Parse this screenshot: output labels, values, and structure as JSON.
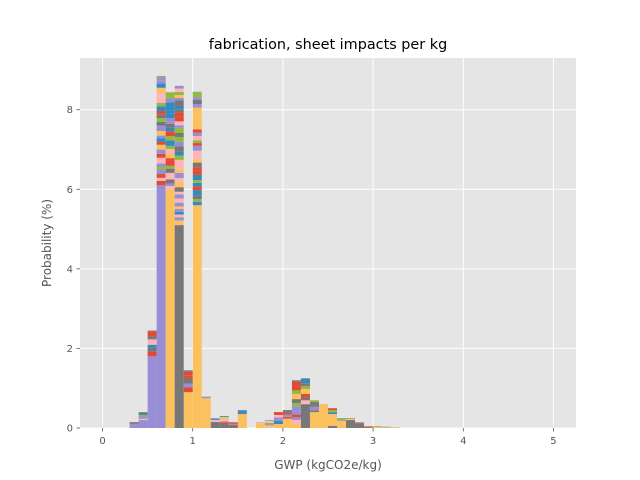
{
  "chart_data": {
    "type": "bar",
    "title": "fabrication, sheet impacts per kg",
    "xlabel": "GWP (kgCO2e/kg)",
    "ylabel": "Probability (%)",
    "xlim": [
      -0.25,
      5.25
    ],
    "ylim": [
      0,
      9.3
    ],
    "xticks": [
      "0",
      "1",
      "2",
      "3",
      "4",
      "5"
    ],
    "yticks": [
      "0",
      "2",
      "4",
      "6",
      "8"
    ],
    "grid": true,
    "bin_width": 0.1,
    "stack_palette": [
      "#348ABD",
      "#E24A33",
      "#988ED5",
      "#777777",
      "#FBC15E",
      "#8EBA42",
      "#FFB5B8"
    ],
    "base_series": [
      {
        "name": "",
        "color": "#988ED5",
        "bins": [
          [
            0.3,
            0.1
          ],
          [
            0.4,
            0.2
          ],
          [
            0.5,
            1.8
          ],
          [
            0.6,
            6.1
          ]
        ]
      },
      {
        "name": "",
        "color": "#FBC15E",
        "bins": [
          [
            0.7,
            6.0
          ],
          [
            0.8,
            0.6
          ],
          [
            0.9,
            0.9
          ],
          [
            1.0,
            5.6
          ],
          [
            1.1,
            0.75
          ],
          [
            1.5,
            0.35
          ],
          [
            1.7,
            0.1
          ],
          [
            1.9,
            0.1
          ],
          [
            2.0,
            0.15
          ],
          [
            2.1,
            0.1
          ],
          [
            2.3,
            0.4
          ],
          [
            2.4,
            0.6
          ],
          [
            2.5,
            0.35
          ],
          [
            2.6,
            0.15
          ],
          [
            3.0,
            0.03
          ],
          [
            3.1,
            0.02
          ],
          [
            3.2,
            0.02
          ]
        ]
      },
      {
        "name": "",
        "color": "#777777",
        "bins": [
          [
            0.8,
            5.1
          ],
          [
            1.2,
            0.15
          ],
          [
            1.3,
            0.1
          ],
          [
            1.4,
            0.05
          ],
          [
            2.2,
            0.6
          ],
          [
            2.5,
            0.05
          ],
          [
            2.7,
            0.2
          ],
          [
            2.8,
            0.1
          ],
          [
            2.9,
            0.02
          ]
        ]
      }
    ],
    "totals": [
      [
        0.3,
        0.15
      ],
      [
        0.4,
        0.4
      ],
      [
        0.5,
        2.45
      ],
      [
        0.6,
        8.85
      ],
      [
        0.7,
        8.45
      ],
      [
        0.8,
        8.6
      ],
      [
        0.9,
        1.45
      ],
      [
        1.0,
        8.45
      ],
      [
        1.1,
        0.8
      ],
      [
        1.2,
        0.25
      ],
      [
        1.3,
        0.3
      ],
      [
        1.4,
        0.15
      ],
      [
        1.5,
        0.45
      ],
      [
        1.7,
        0.15
      ],
      [
        1.8,
        0.2
      ],
      [
        1.9,
        0.4
      ],
      [
        2.0,
        0.45
      ],
      [
        2.1,
        1.2
      ],
      [
        2.2,
        1.25
      ],
      [
        2.3,
        0.7
      ],
      [
        2.4,
        0.6
      ],
      [
        2.5,
        0.5
      ],
      [
        2.6,
        0.25
      ],
      [
        2.7,
        0.25
      ],
      [
        2.8,
        0.15
      ],
      [
        2.9,
        0.05
      ],
      [
        3.0,
        0.05
      ],
      [
        3.1,
        0.03
      ],
      [
        3.2,
        0.02
      ]
    ]
  }
}
